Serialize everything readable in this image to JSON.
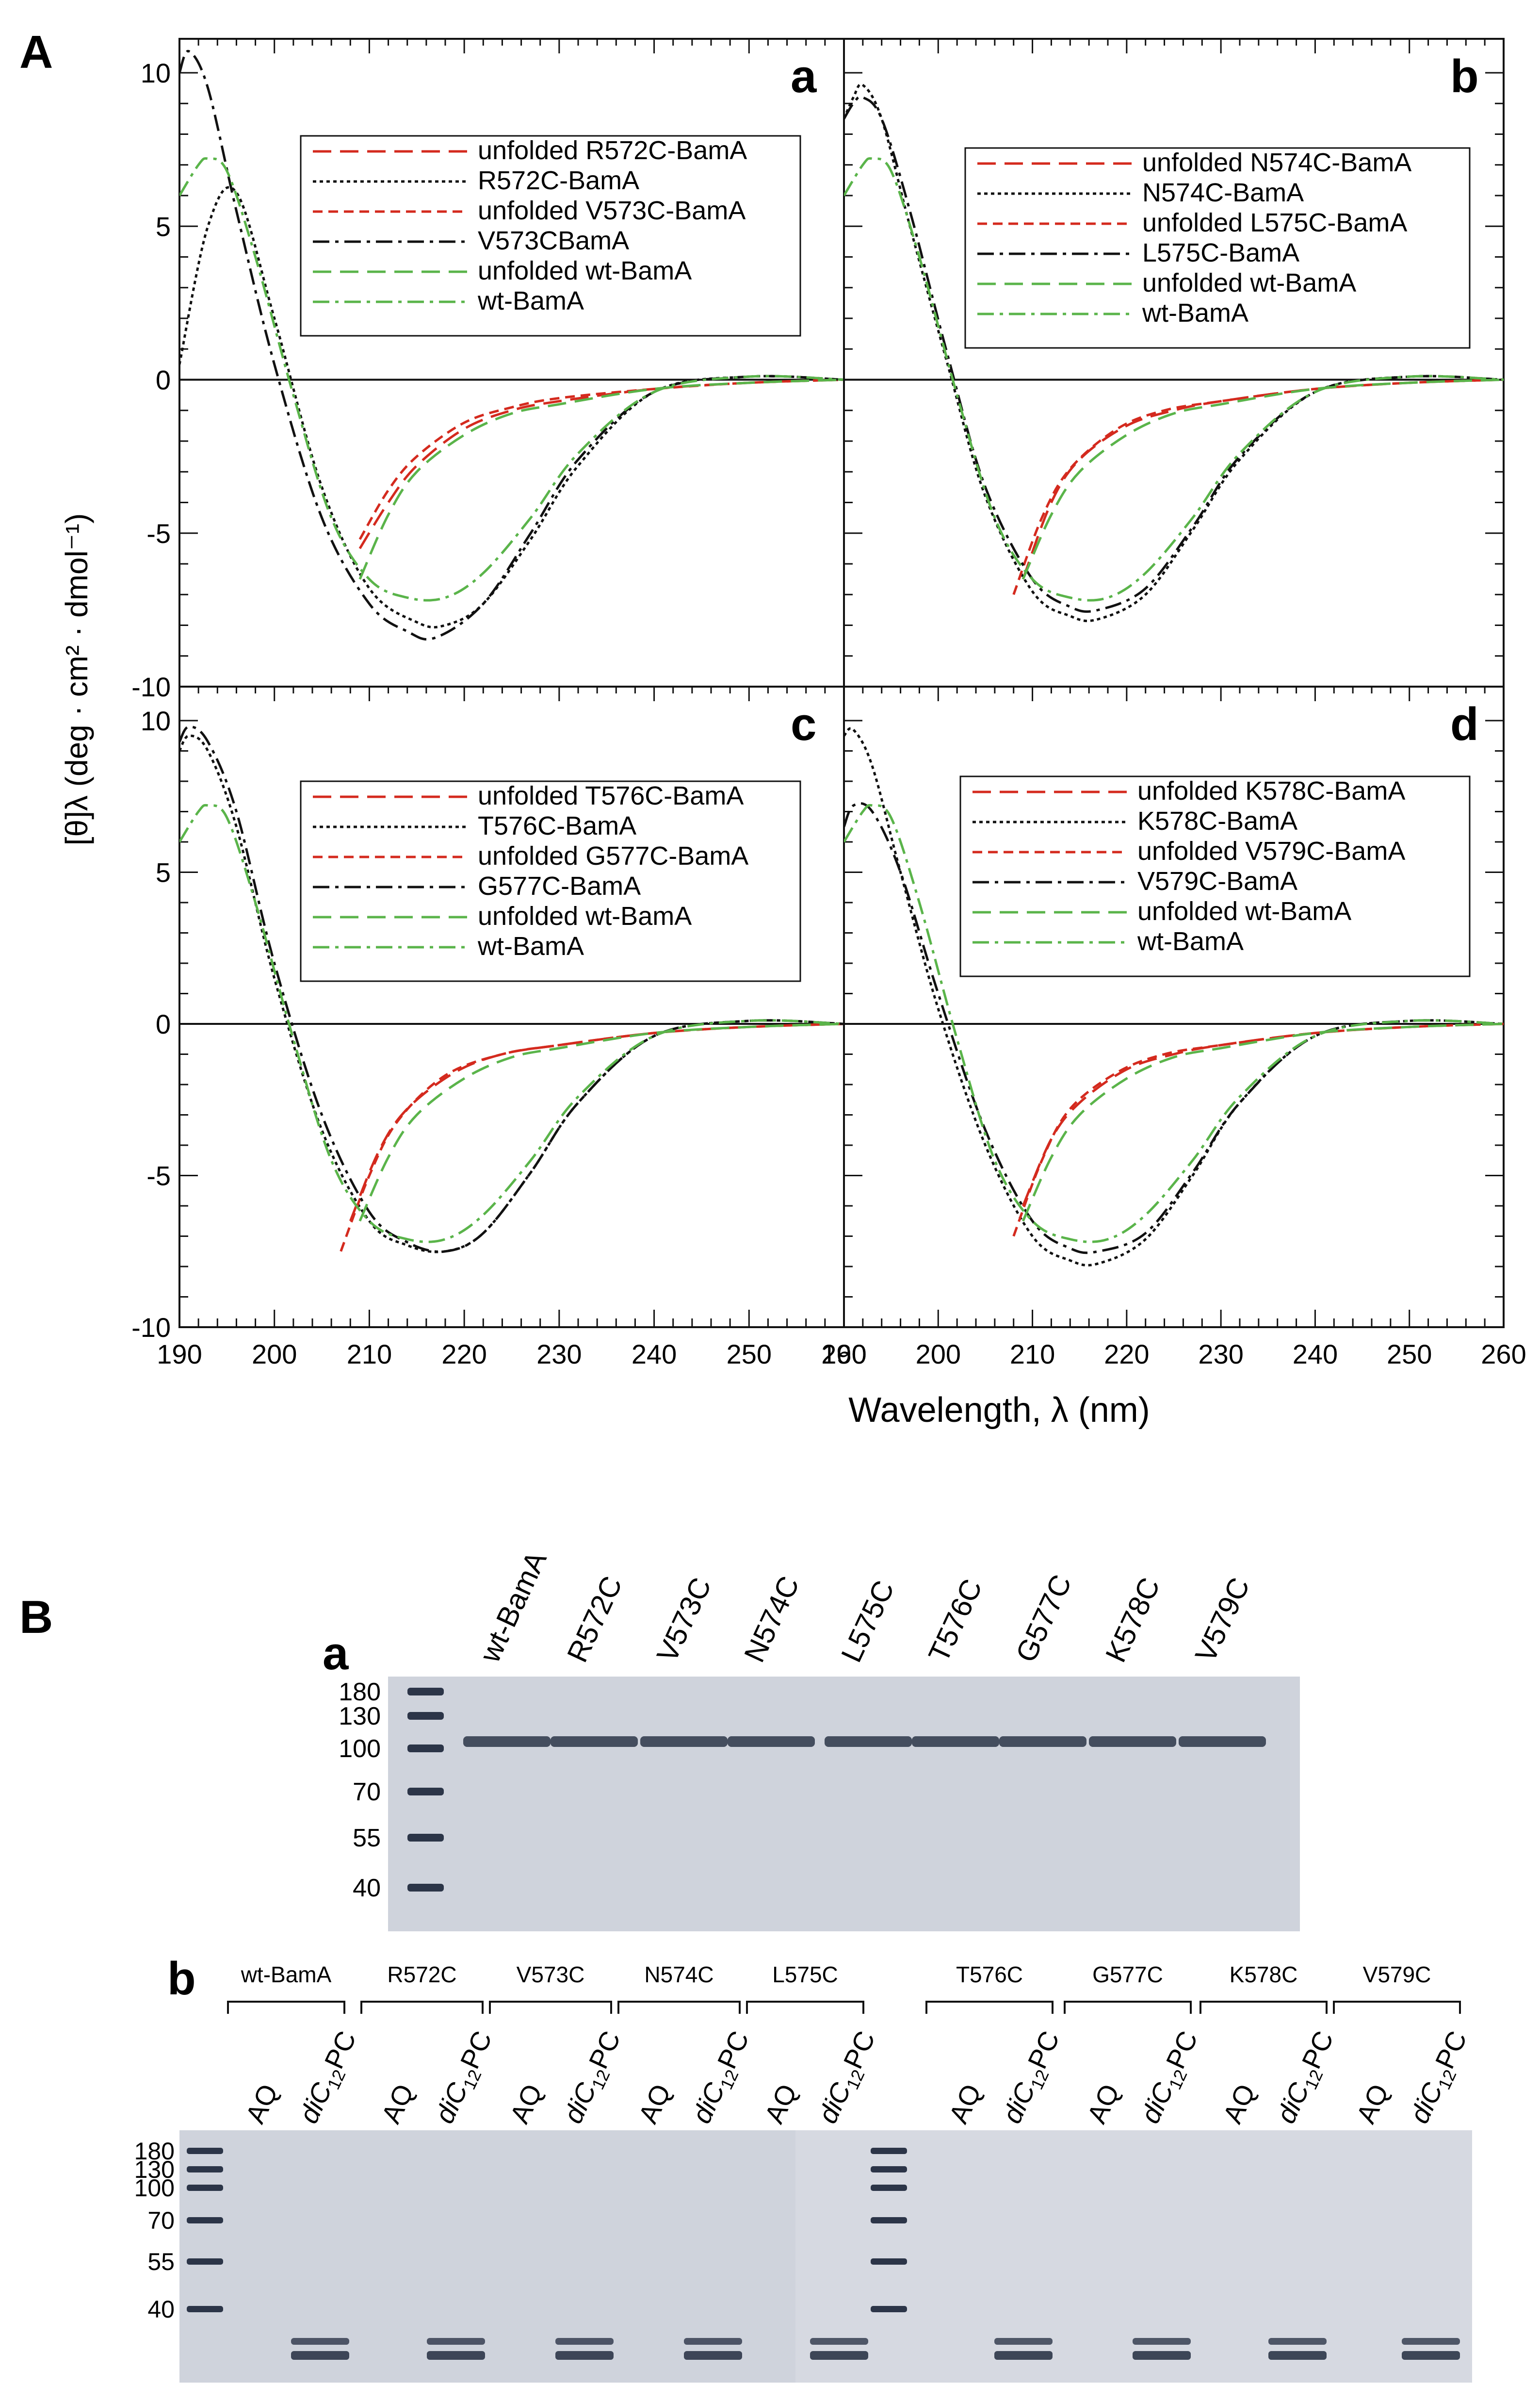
{
  "figure": {
    "panelA_label": "A",
    "panelB_label": "B",
    "y_axis_label": "[θ]λ   (deg · cm² · dmol⁻¹)",
    "x_axis_label": "Wavelength, λ (nm)"
  },
  "colors": {
    "red": "#d42a1e",
    "black": "#111111",
    "green": "#5ab44a",
    "gel_bg": "#cfd3dc",
    "band": "#2c3548"
  },
  "chart_data": [
    {
      "type": "line",
      "panel": "a",
      "title": "a",
      "xlabel": "Wavelength, λ (nm)",
      "ylabel": "[θ]λ (deg · cm² · dmol⁻¹)",
      "xlim": [
        190,
        260
      ],
      "ylim": [
        -10,
        10
      ],
      "x_ticks": [
        190,
        200,
        210,
        220,
        230,
        240,
        250,
        260
      ],
      "y_ticks": [
        10,
        5,
        0,
        -5,
        -10
      ],
      "legend_position": "top-right",
      "series": [
        {
          "name": "unfolded R572C-BamA",
          "color": "red",
          "dash": "long",
          "x": [
            209,
            212,
            215,
            220,
            225,
            230,
            240,
            250,
            260
          ],
          "y": [
            -5.5,
            -4.0,
            -2.8,
            -1.6,
            -1.0,
            -0.7,
            -0.3,
            -0.1,
            0
          ]
        },
        {
          "name": "R572C-BamA",
          "color": "black",
          "dash": "dot",
          "x": [
            190,
            193,
            196,
            200,
            205,
            210,
            215,
            218,
            222,
            227,
            232,
            240,
            250,
            260
          ],
          "y": [
            0.5,
            5.0,
            6.1,
            2.0,
            -3.5,
            -6.8,
            -7.9,
            -8.0,
            -7.3,
            -5.2,
            -2.8,
            -0.4,
            0.1,
            0
          ]
        },
        {
          "name": "unfolded V573C-BamA",
          "color": "red",
          "dash": "short",
          "x": [
            209,
            212,
            215,
            220,
            225,
            230,
            240,
            250,
            260
          ],
          "y": [
            -5.2,
            -3.6,
            -2.5,
            -1.4,
            -0.9,
            -0.6,
            -0.3,
            -0.1,
            0
          ]
        },
        {
          "name": "V573CBamA",
          "color": "black",
          "dash": "dashdot",
          "x": [
            190,
            191,
            193,
            196,
            200,
            205,
            210,
            214,
            217,
            222,
            227,
            232,
            240,
            250,
            260
          ],
          "y": [
            10.0,
            10.7,
            9.5,
            5.5,
            0.5,
            -4.5,
            -7.3,
            -8.2,
            -8.4,
            -7.3,
            -5.0,
            -2.6,
            -0.4,
            0.1,
            0
          ]
        },
        {
          "name": "unfolded wt-BamA",
          "color": "green",
          "dash": "long",
          "x": [
            209,
            212,
            215,
            220,
            225,
            230,
            240,
            250,
            260
          ],
          "y": [
            -6.5,
            -4.4,
            -3.0,
            -1.8,
            -1.1,
            -0.8,
            -0.3,
            -0.1,
            0
          ]
        },
        {
          "name": "wt-BamA",
          "color": "green",
          "dash": "dashdot",
          "x": [
            190,
            192,
            193,
            195,
            198,
            202,
            206,
            210,
            214,
            218,
            222,
            227,
            232,
            240,
            250,
            260
          ],
          "y": [
            6.0,
            7.0,
            7.2,
            6.8,
            4.0,
            -0.5,
            -4.5,
            -6.5,
            -7.1,
            -7.1,
            -6.3,
            -4.5,
            -2.4,
            -0.4,
            0.1,
            0
          ]
        }
      ]
    },
    {
      "type": "line",
      "panel": "b",
      "title": "b",
      "xlabel": "Wavelength, λ (nm)",
      "ylabel": "[θ]λ (deg · cm² · dmol⁻¹)",
      "xlim": [
        190,
        260
      ],
      "ylim": [
        -10,
        10
      ],
      "x_ticks": [
        190,
        200,
        210,
        220,
        230,
        240,
        250,
        260
      ],
      "y_ticks": [
        10,
        5,
        0,
        -5,
        -10
      ],
      "legend_position": "top-right",
      "series": [
        {
          "name": "unfolded N574C-BamA",
          "color": "red",
          "dash": "long",
          "x": [
            209,
            212,
            215,
            220,
            225,
            230,
            240,
            250,
            260
          ],
          "y": [
            -6.5,
            -4.0,
            -2.6,
            -1.5,
            -1.0,
            -0.7,
            -0.3,
            -0.1,
            0
          ]
        },
        {
          "name": "N574C-BamA",
          "color": "black",
          "dash": "dot",
          "x": [
            190,
            191,
            192,
            194,
            197,
            201,
            205,
            210,
            214,
            217,
            222,
            227,
            232,
            240,
            250,
            260
          ],
          "y": [
            8.5,
            9.2,
            9.6,
            8.5,
            5.0,
            0.5,
            -3.8,
            -6.9,
            -7.7,
            -7.8,
            -7.0,
            -4.9,
            -2.6,
            -0.4,
            0.1,
            0
          ]
        },
        {
          "name": "unfolded L575C-BamA",
          "color": "red",
          "dash": "short",
          "x": [
            208,
            211,
            214,
            219,
            224,
            230,
            240,
            250,
            260
          ],
          "y": [
            -7.0,
            -4.5,
            -2.9,
            -1.6,
            -1.0,
            -0.7,
            -0.3,
            -0.1,
            0
          ]
        },
        {
          "name": "L575C-BamA",
          "color": "black",
          "dash": "dashdot",
          "x": [
            190,
            191,
            192,
            194,
            197,
            201,
            205,
            210,
            214,
            217,
            222,
            227,
            232,
            240,
            250,
            260
          ],
          "y": [
            8.5,
            9.0,
            9.2,
            8.5,
            5.5,
            0.8,
            -3.5,
            -6.5,
            -7.4,
            -7.5,
            -6.8,
            -4.8,
            -2.5,
            -0.4,
            0.1,
            0
          ]
        },
        {
          "name": "unfolded wt-BamA",
          "color": "green",
          "dash": "long",
          "x": [
            209,
            212,
            215,
            220,
            225,
            230,
            240,
            250,
            260
          ],
          "y": [
            -6.5,
            -4.4,
            -3.0,
            -1.8,
            -1.1,
            -0.8,
            -0.3,
            -0.1,
            0
          ]
        },
        {
          "name": "wt-BamA",
          "color": "green",
          "dash": "dashdot",
          "x": [
            190,
            192,
            193,
            195,
            198,
            202,
            206,
            210,
            214,
            218,
            222,
            227,
            232,
            240,
            250,
            260
          ],
          "y": [
            6.0,
            7.0,
            7.2,
            6.8,
            4.0,
            -0.5,
            -4.5,
            -6.5,
            -7.1,
            -7.1,
            -6.3,
            -4.5,
            -2.4,
            -0.4,
            0.1,
            0
          ]
        }
      ]
    },
    {
      "type": "line",
      "panel": "c",
      "title": "c",
      "xlabel": "Wavelength, λ (nm)",
      "ylabel": "[θ]λ (deg · cm² · dmol⁻¹)",
      "xlim": [
        190,
        260
      ],
      "ylim": [
        -10,
        10
      ],
      "x_ticks": [
        190,
        200,
        210,
        220,
        230,
        240,
        250,
        260
      ],
      "y_ticks": [
        10,
        5,
        0,
        -5,
        -10
      ],
      "legend_position": "top-right",
      "series": [
        {
          "name": "unfolded T576C-BamA",
          "color": "red",
          "dash": "long",
          "x": [
            208,
            211,
            214,
            219,
            224,
            230,
            240,
            250,
            260
          ],
          "y": [
            -6.5,
            -4.2,
            -2.8,
            -1.6,
            -1.0,
            -0.7,
            -0.3,
            -0.1,
            0
          ]
        },
        {
          "name": "T576C-BamA",
          "color": "black",
          "dash": "dot",
          "x": [
            190,
            191,
            193,
            196,
            200,
            205,
            210,
            214,
            218,
            222,
            227,
            232,
            240,
            250,
            260
          ],
          "y": [
            9.0,
            9.5,
            9.0,
            6.5,
            1.5,
            -3.5,
            -6.5,
            -7.3,
            -7.5,
            -6.9,
            -4.9,
            -2.6,
            -0.4,
            0.1,
            0
          ]
        },
        {
          "name": "unfolded G577C-BamA",
          "color": "red",
          "dash": "short",
          "x": [
            207,
            210,
            213,
            218,
            224,
            230,
            240,
            250,
            260
          ],
          "y": [
            -7.5,
            -5.0,
            -3.2,
            -1.7,
            -1.0,
            -0.7,
            -0.3,
            -0.1,
            0
          ]
        },
        {
          "name": "G577C-BamA",
          "color": "black",
          "dash": "dashdot",
          "x": [
            190,
            191,
            193,
            196,
            200,
            205,
            210,
            214,
            218,
            222,
            227,
            232,
            240,
            250,
            260
          ],
          "y": [
            9.3,
            9.8,
            9.3,
            7.0,
            2.0,
            -3.0,
            -6.2,
            -7.2,
            -7.5,
            -6.9,
            -4.9,
            -2.6,
            -0.4,
            0.1,
            0
          ]
        },
        {
          "name": "unfolded wt-BamA",
          "color": "green",
          "dash": "long",
          "x": [
            209,
            212,
            215,
            220,
            225,
            230,
            240,
            250,
            260
          ],
          "y": [
            -6.5,
            -4.4,
            -3.0,
            -1.8,
            -1.1,
            -0.8,
            -0.3,
            -0.1,
            0
          ]
        },
        {
          "name": "wt-BamA",
          "color": "green",
          "dash": "dashdot",
          "x": [
            190,
            192,
            193,
            195,
            198,
            202,
            206,
            210,
            214,
            218,
            222,
            227,
            232,
            240,
            250,
            260
          ],
          "y": [
            6.0,
            7.0,
            7.2,
            6.8,
            4.0,
            -0.5,
            -4.5,
            -6.5,
            -7.1,
            -7.1,
            -6.3,
            -4.5,
            -2.4,
            -0.4,
            0.1,
            0
          ]
        }
      ]
    },
    {
      "type": "line",
      "panel": "d",
      "title": "d",
      "xlabel": "Wavelength, λ (nm)",
      "ylabel": "[θ]λ (deg · cm² · dmol⁻¹)",
      "xlim": [
        190,
        260
      ],
      "ylim": [
        -10,
        10
      ],
      "x_ticks": [
        190,
        200,
        210,
        220,
        230,
        240,
        250,
        260
      ],
      "y_ticks": [
        10,
        5,
        0,
        -5,
        -10
      ],
      "legend_position": "top-right",
      "series": [
        {
          "name": "unfolded K578C-BamA",
          "color": "red",
          "dash": "long",
          "x": [
            209,
            212,
            215,
            220,
            225,
            230,
            240,
            250,
            260
          ],
          "y": [
            -6.0,
            -3.8,
            -2.6,
            -1.5,
            -1.0,
            -0.7,
            -0.3,
            -0.1,
            0
          ]
        },
        {
          "name": "K578C-BamA",
          "color": "black",
          "dash": "dot",
          "x": [
            190,
            191,
            193,
            196,
            200,
            205,
            210,
            214,
            217,
            222,
            227,
            232,
            240,
            250,
            260
          ],
          "y": [
            9.5,
            9.7,
            8.5,
            5.0,
            0.5,
            -4.0,
            -7.0,
            -7.8,
            -7.9,
            -7.1,
            -5.0,
            -2.6,
            -0.4,
            0.1,
            0
          ]
        },
        {
          "name": "unfolded V579C-BamA",
          "color": "red",
          "dash": "short",
          "x": [
            208,
            211,
            214,
            219,
            224,
            230,
            240,
            250,
            260
          ],
          "y": [
            -7.0,
            -4.5,
            -2.8,
            -1.6,
            -1.0,
            -0.7,
            -0.3,
            -0.1,
            0
          ]
        },
        {
          "name": "V579C-BamA",
          "color": "black",
          "dash": "dashdot",
          "x": [
            190,
            191,
            193,
            196,
            200,
            205,
            210,
            214,
            217,
            222,
            227,
            232,
            240,
            250,
            260
          ],
          "y": [
            6.5,
            7.2,
            7.0,
            5.0,
            1.0,
            -3.5,
            -6.5,
            -7.4,
            -7.5,
            -6.9,
            -4.9,
            -2.6,
            -0.4,
            0.1,
            0
          ]
        },
        {
          "name": "unfolded wt-BamA",
          "color": "green",
          "dash": "long",
          "x": [
            209,
            212,
            215,
            220,
            225,
            230,
            240,
            250,
            260
          ],
          "y": [
            -6.5,
            -4.4,
            -3.0,
            -1.8,
            -1.1,
            -0.8,
            -0.3,
            -0.1,
            0
          ]
        },
        {
          "name": "wt-BamA",
          "color": "green",
          "dash": "dashdot",
          "x": [
            190,
            192,
            193,
            195,
            198,
            202,
            206,
            210,
            214,
            218,
            222,
            227,
            232,
            240,
            250,
            260
          ],
          "y": [
            6.0,
            7.0,
            7.2,
            6.8,
            4.0,
            -0.5,
            -4.5,
            -6.5,
            -7.1,
            -7.1,
            -6.3,
            -4.5,
            -2.4,
            -0.4,
            0.1,
            0
          ]
        }
      ]
    }
  ],
  "gel_a": {
    "label": "a",
    "lanes": [
      "wt-BamA",
      "R572C",
      "V573C",
      "N574C",
      "L575C",
      "T576C",
      "G577C",
      "K578C",
      "V579C"
    ],
    "markers": [
      "180",
      "130",
      "100",
      "70",
      "55",
      "40"
    ]
  },
  "gel_b": {
    "label": "b",
    "groups": [
      "wt-BamA",
      "R572C",
      "V573C",
      "N574C",
      "L575C",
      "T576C",
      "G577C",
      "K578C",
      "V579C"
    ],
    "lane_aq": "AQ",
    "lane_lipid_prefix": "diC",
    "lane_lipid_sub": "12",
    "lane_lipid_suffix": "PC",
    "markers": [
      "180",
      "130",
      "100",
      "70",
      "55",
      "40"
    ]
  }
}
